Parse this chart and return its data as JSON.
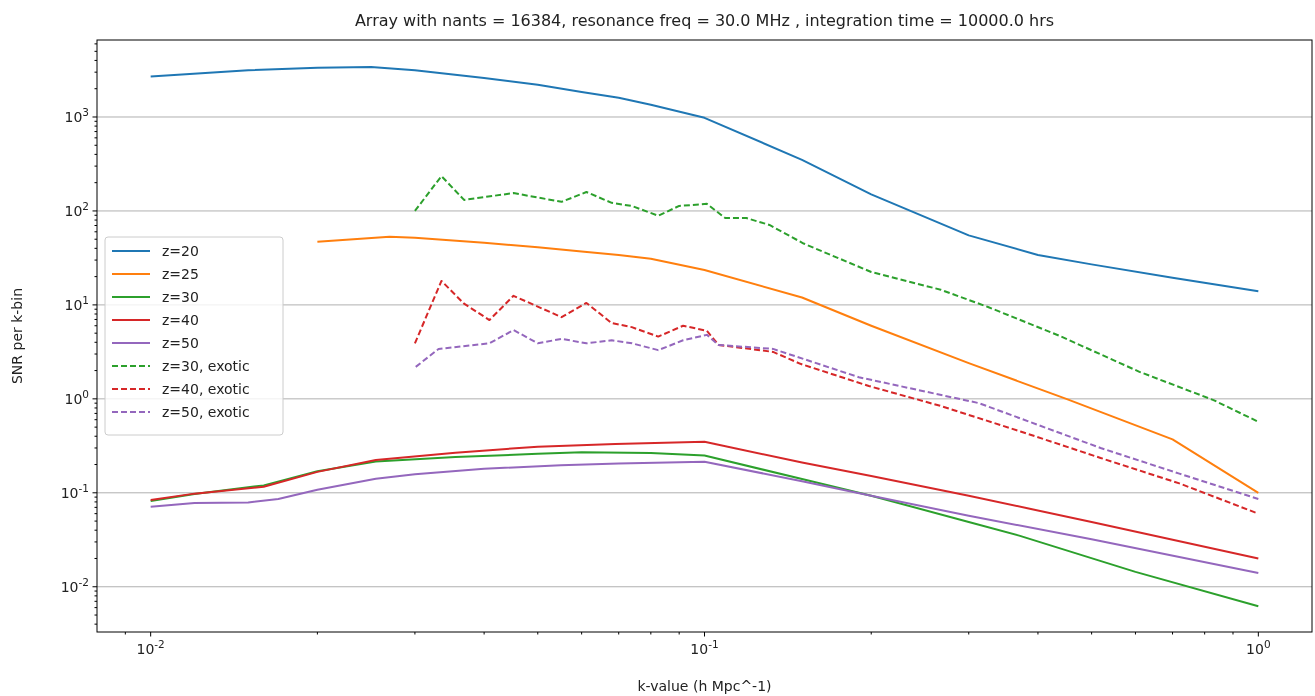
{
  "chart_data": {
    "type": "line",
    "title": "Array with nants = 16384, resonance freq = 30.0 MHz , integration time = 10000.0 hrs",
    "xlabel": "k-value (h Mpc^-1)",
    "ylabel": "SNR per k-bin",
    "log": "xy",
    "grid": "y",
    "legend": "center left",
    "line_style": "solid",
    "marker": "none",
    "xlim": [
      0.008,
      1.25
    ],
    "ylim": [
      0.0033,
      6600
    ],
    "xticks": [
      {
        "value": 0.01,
        "label": "10$^{-2}$"
      },
      {
        "value": 0.1,
        "label": "10$^{-1}$"
      },
      {
        "value": 1,
        "label": "10$^{0}$"
      },
      {
        "value": 0.009,
        "label": null
      },
      {
        "value": 0.02,
        "label": null
      },
      {
        "value": 0.03,
        "label": null
      },
      {
        "value": 0.04,
        "label": null
      },
      {
        "value": 0.05,
        "label": null
      },
      {
        "value": 0.06,
        "label": null
      },
      {
        "value": 0.07,
        "label": null
      },
      {
        "value": 0.08,
        "label": null
      },
      {
        "value": 0.09,
        "label": null
      },
      {
        "value": 0.2,
        "label": null
      },
      {
        "value": 0.3,
        "label": null
      },
      {
        "value": 0.4,
        "label": null
      },
      {
        "value": 0.5,
        "label": null
      },
      {
        "value": 0.6,
        "label": null
      },
      {
        "value": 0.7,
        "label": null
      },
      {
        "value": 0.8,
        "label": null
      },
      {
        "value": 0.9,
        "label": null
      }
    ],
    "yticks": [
      {
        "value": 0.01,
        "label": "10$^{-2}$"
      },
      {
        "value": 0.1,
        "label": "10$^{-1}$"
      },
      {
        "value": 1,
        "label": "10$^{0}$"
      },
      {
        "value": 10,
        "label": "10$^{1}$"
      },
      {
        "value": 100,
        "label": "10$^{2}$"
      },
      {
        "value": 1000,
        "label": "10$^{3}$"
      },
      {
        "value": 0.004,
        "label": null
      },
      {
        "value": 0.005,
        "label": null
      },
      {
        "value": 0.006,
        "label": null
      },
      {
        "value": 0.007,
        "label": null
      },
      {
        "value": 0.008,
        "label": null
      },
      {
        "value": 0.009,
        "label": null
      },
      {
        "value": 0.02,
        "label": null
      },
      {
        "value": 0.03,
        "label": null
      },
      {
        "value": 0.04,
        "label": null
      },
      {
        "value": 0.05,
        "label": null
      },
      {
        "value": 0.06,
        "label": null
      },
      {
        "value": 0.07,
        "label": null
      },
      {
        "value": 0.08,
        "label": null
      },
      {
        "value": 0.09,
        "label": null
      },
      {
        "value": 0.2,
        "label": null
      },
      {
        "value": 0.3,
        "label": null
      },
      {
        "value": 0.4,
        "label": null
      },
      {
        "value": 0.5,
        "label": null
      },
      {
        "value": 0.6,
        "label": null
      },
      {
        "value": 0.7,
        "label": null
      },
      {
        "value": 0.8,
        "label": null
      },
      {
        "value": 0.9,
        "label": null
      },
      {
        "value": 2,
        "label": null
      },
      {
        "value": 3,
        "label": null
      },
      {
        "value": 4,
        "label": null
      },
      {
        "value": 5,
        "label": null
      },
      {
        "value": 6,
        "label": null
      },
      {
        "value": 7,
        "label": null
      },
      {
        "value": 8,
        "label": null
      },
      {
        "value": 9,
        "label": null
      },
      {
        "value": 20,
        "label": null
      },
      {
        "value": 30,
        "label": null
      },
      {
        "value": 40,
        "label": null
      },
      {
        "value": 50,
        "label": null
      },
      {
        "value": 60,
        "label": null
      },
      {
        "value": 70,
        "label": null
      },
      {
        "value": 80,
        "label": null
      },
      {
        "value": 90,
        "label": null
      },
      {
        "value": 200,
        "label": null
      },
      {
        "value": 300,
        "label": null
      },
      {
        "value": 400,
        "label": null
      },
      {
        "value": 500,
        "label": null
      },
      {
        "value": 600,
        "label": null
      },
      {
        "value": 700,
        "label": null
      },
      {
        "value": 800,
        "label": null
      },
      {
        "value": 900,
        "label": null
      },
      {
        "value": 2000,
        "label": null
      },
      {
        "value": 3000,
        "label": null
      },
      {
        "value": 4000,
        "label": null
      },
      {
        "value": 5000,
        "label": null
      },
      {
        "value": 6000,
        "label": null
      }
    ],
    "series": [
      {
        "name": "z=20",
        "color": "#1f77b4",
        "x": [
          0.01,
          0.015,
          0.02,
          0.025,
          0.03,
          0.04,
          0.05,
          0.06,
          0.07,
          0.08,
          0.1,
          0.15,
          0.2,
          0.3,
          0.4,
          0.5,
          0.7,
          1.0
        ],
        "values": [
          2700,
          3150,
          3350,
          3400,
          3150,
          2600,
          2200,
          1850,
          1600,
          1350,
          980,
          350,
          150,
          55,
          34,
          27,
          19.5,
          14
        ]
      },
      {
        "name": "z=25",
        "color": "#ff7f0e",
        "x": [
          0.02,
          0.027,
          0.03,
          0.04,
          0.05,
          0.06,
          0.07,
          0.08,
          0.1,
          0.15,
          0.2,
          0.3,
          0.45,
          0.7,
          1.0
        ],
        "values": [
          47,
          53,
          52,
          46,
          41,
          37,
          34,
          31,
          23.5,
          12,
          6.0,
          2.4,
          1.0,
          0.37,
          0.1
        ]
      },
      {
        "name": "z=30",
        "color": "#2ca02c",
        "x": [
          0.01,
          0.012,
          0.016,
          0.02,
          0.0255,
          0.0355,
          0.05,
          0.06,
          0.08,
          0.1,
          0.15,
          0.2,
          0.3,
          0.37,
          0.6,
          1.0
        ],
        "values": [
          0.082,
          0.097,
          0.12,
          0.17,
          0.215,
          0.24,
          0.26,
          0.27,
          0.265,
          0.25,
          0.14,
          0.093,
          0.049,
          0.035,
          0.0144,
          0.0062
        ]
      },
      {
        "name": "z=40",
        "color": "#d62728",
        "x": [
          0.01,
          0.012,
          0.016,
          0.02,
          0.0255,
          0.0355,
          0.05,
          0.069,
          0.1,
          0.15,
          0.2,
          0.3,
          0.5,
          1.0
        ],
        "values": [
          0.084,
          0.098,
          0.116,
          0.167,
          0.224,
          0.267,
          0.31,
          0.33,
          0.35,
          0.21,
          0.151,
          0.093,
          0.049,
          0.02
        ]
      },
      {
        "name": "z=50",
        "color": "#9467bd",
        "x": [
          0.01,
          0.012,
          0.015,
          0.017,
          0.02,
          0.0255,
          0.03,
          0.04,
          0.055,
          0.07,
          0.1,
          0.15,
          0.2,
          0.3,
          0.5,
          1.0
        ],
        "values": [
          0.071,
          0.078,
          0.079,
          0.086,
          0.108,
          0.141,
          0.158,
          0.18,
          0.197,
          0.205,
          0.214,
          0.133,
          0.093,
          0.057,
          0.032,
          0.014
        ]
      },
      {
        "name": "z=30, exotic",
        "color": "#2ca02c",
        "line_style": "dashed",
        "x": [
          0.03,
          0.0335,
          0.0368,
          0.0452,
          0.0552,
          0.0612,
          0.068,
          0.0739,
          0.0825,
          0.09,
          0.101,
          0.109,
          0.119,
          0.131,
          0.151,
          0.2,
          0.267,
          0.325,
          0.437,
          0.61,
          0.83,
          1.0
        ],
        "values": [
          100,
          235,
          131,
          155,
          125,
          159,
          122,
          113,
          89,
          113,
          119,
          84,
          84,
          71,
          45,
          22.4,
          14.5,
          9.5,
          4.7,
          1.94,
          0.97,
          0.57
        ]
      },
      {
        "name": "z=40, exotic",
        "color": "#d62728",
        "line_style": "dashed",
        "x": [
          0.03,
          0.0335,
          0.0368,
          0.0409,
          0.0452,
          0.0552,
          0.0612,
          0.068,
          0.0739,
          0.0825,
          0.0915,
          0.101,
          0.106,
          0.133,
          0.149,
          0.198,
          0.267,
          0.372,
          0.519,
          0.72,
          1.0
        ],
        "values": [
          3.9,
          18,
          10.3,
          6.9,
          12.5,
          7.4,
          10.5,
          6.4,
          5.8,
          4.6,
          6.0,
          5.3,
          3.75,
          3.16,
          2.36,
          1.37,
          0.84,
          0.45,
          0.235,
          0.126,
          0.06
        ]
      },
      {
        "name": "z=50, exotic",
        "color": "#9467bd",
        "line_style": "dashed",
        "x": [
          0.0301,
          0.0331,
          0.0409,
          0.0452,
          0.05,
          0.0552,
          0.0612,
          0.068,
          0.074,
          0.0825,
          0.0915,
          0.101,
          0.106,
          0.133,
          0.19,
          0.313,
          0.519,
          0.72,
          1.0
        ],
        "values": [
          2.19,
          3.4,
          3.9,
          5.4,
          3.9,
          4.35,
          3.9,
          4.2,
          3.9,
          3.3,
          4.2,
          4.8,
          3.75,
          3.4,
          1.7,
          0.9,
          0.3,
          0.16,
          0.086
        ]
      }
    ]
  }
}
